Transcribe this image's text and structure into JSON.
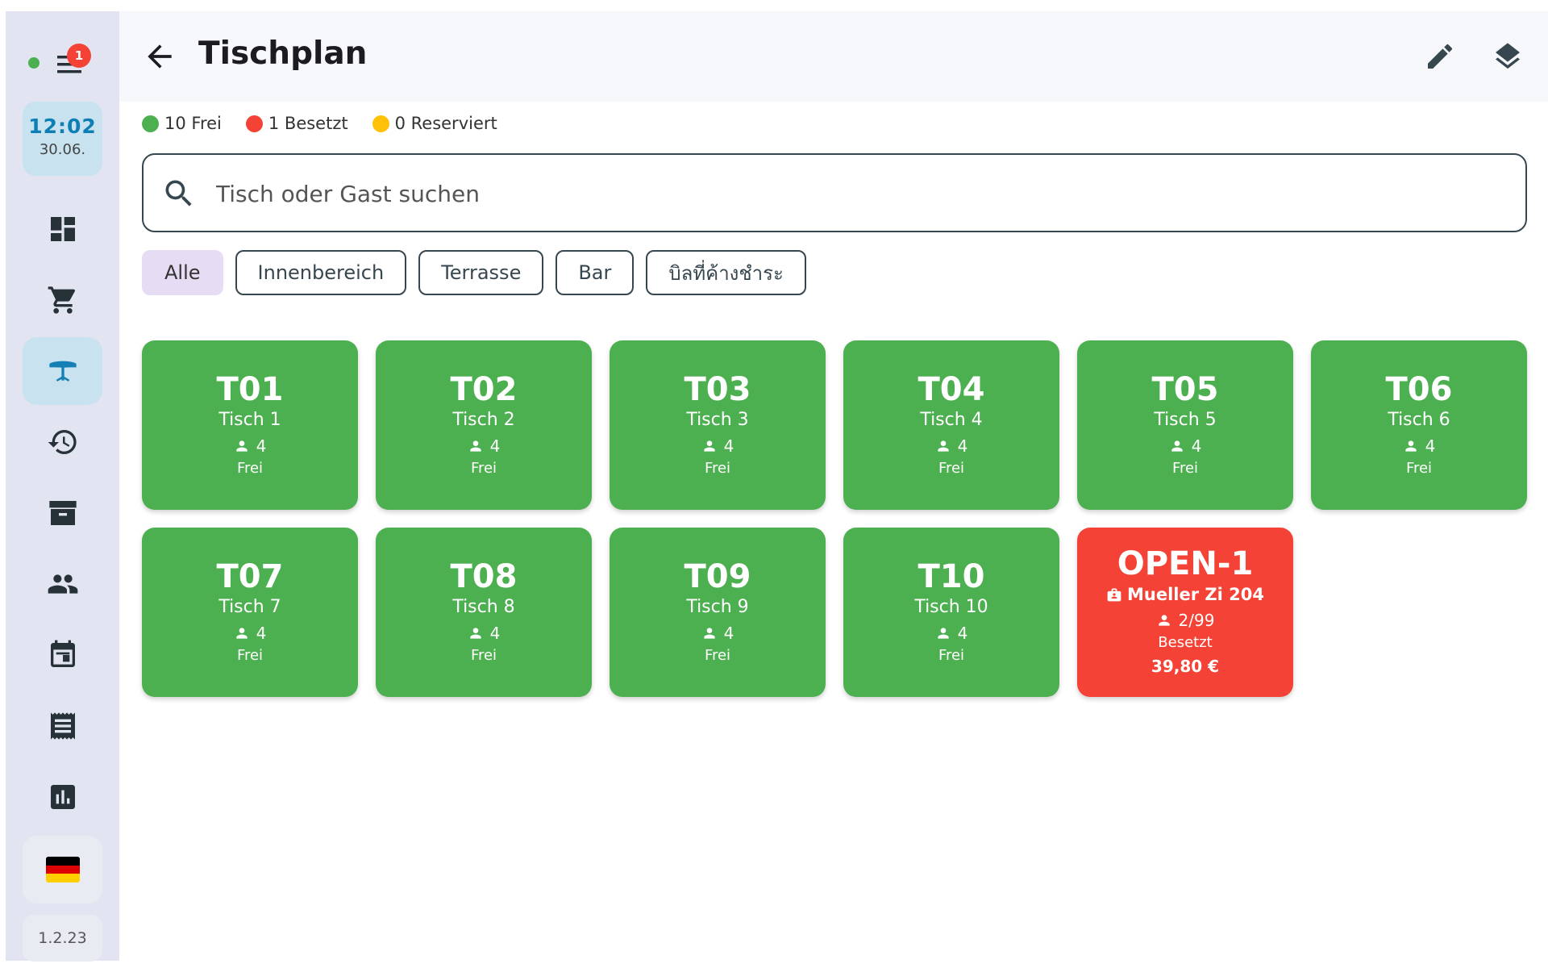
{
  "sidebar": {
    "notification_count": "1",
    "clock": {
      "time": "12:02",
      "date": "30.06."
    },
    "nav_items": [
      {
        "name": "dashboard-icon"
      },
      {
        "name": "cart-icon"
      },
      {
        "name": "table-icon",
        "active": true
      },
      {
        "name": "history-icon"
      },
      {
        "name": "archive-icon"
      },
      {
        "name": "people-icon"
      },
      {
        "name": "calendar-icon"
      },
      {
        "name": "receipt-icon"
      },
      {
        "name": "bar-chart-icon"
      }
    ],
    "language_flag": "german-flag-icon",
    "version": "1.2.23"
  },
  "header": {
    "title": "Tischplan"
  },
  "legend": {
    "free": "10 Frei",
    "occupied": "1 Besetzt",
    "reserved": "0 Reserviert",
    "colors": {
      "free": "#4caf50",
      "occupied": "#f44336",
      "reserved": "#ffc107"
    }
  },
  "search": {
    "placeholder": "Tisch oder Gast suchen",
    "value": ""
  },
  "filters": [
    "Alle",
    "Innenbereich",
    "Terrasse",
    "Bar",
    "บิลที่ค้างชำระ"
  ],
  "tables": [
    {
      "code": "T01",
      "name": "Tisch 1",
      "seats": "4",
      "status": "Frei"
    },
    {
      "code": "T02",
      "name": "Tisch 2",
      "seats": "4",
      "status": "Frei"
    },
    {
      "code": "T03",
      "name": "Tisch 3",
      "seats": "4",
      "status": "Frei"
    },
    {
      "code": "T04",
      "name": "Tisch 4",
      "seats": "4",
      "status": "Frei"
    },
    {
      "code": "T05",
      "name": "Tisch 5",
      "seats": "4",
      "status": "Frei"
    },
    {
      "code": "T06",
      "name": "Tisch 6",
      "seats": "4",
      "status": "Frei"
    },
    {
      "code": "T07",
      "name": "Tisch 7",
      "seats": "4",
      "status": "Frei"
    },
    {
      "code": "T08",
      "name": "Tisch 8",
      "seats": "4",
      "status": "Frei"
    },
    {
      "code": "T09",
      "name": "Tisch 9",
      "seats": "4",
      "status": "Frei"
    },
    {
      "code": "T10",
      "name": "Tisch 10",
      "seats": "4",
      "status": "Frei"
    }
  ],
  "open_table": {
    "code": "OPEN-1",
    "guest": "Mueller Zi 204",
    "seats": "2/99",
    "status": "Besetzt",
    "amount": "39,80 €"
  },
  "colors": {
    "accent": "#1580b5",
    "free": "#4caf50",
    "busy": "#f44336",
    "chip_selected": "#e6dcf4"
  }
}
